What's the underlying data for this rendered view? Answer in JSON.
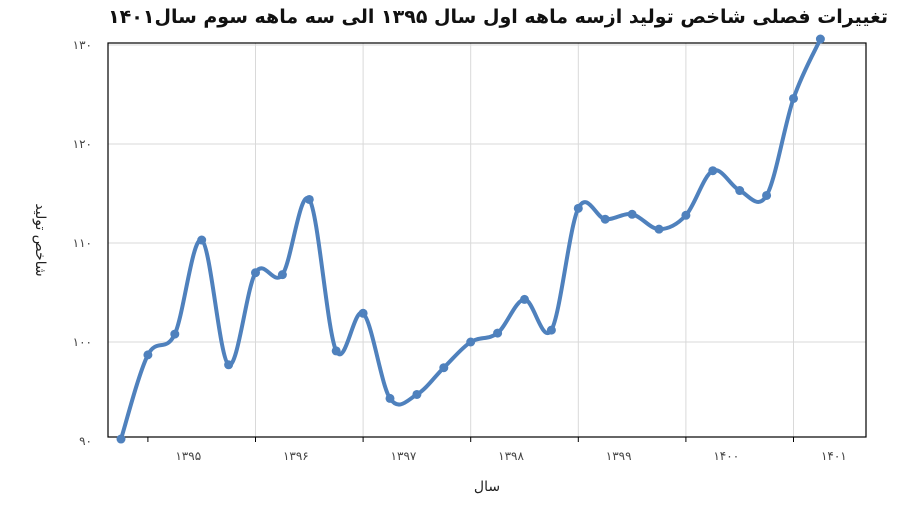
{
  "chart_data": {
    "type": "line",
    "title": "تغییرات فصلی شاخص تولید ازسه ماهه اول سال ۱۳۹۵ الی سه ماهه سوم سال۱۴۰۱",
    "xlabel": "سال",
    "ylabel": "شاخص تولید",
    "ylim": [
      90,
      130
    ],
    "yticks": [
      {
        "value": 90,
        "label": "۹۰"
      },
      {
        "value": 100,
        "label": "۱۰۰"
      },
      {
        "value": 110,
        "label": "۱۱۰"
      },
      {
        "value": 120,
        "label": "۱۲۰"
      },
      {
        "value": 130,
        "label": "۱۳۰"
      }
    ],
    "xticks": [
      {
        "label": "۱۳۹۵",
        "position": 2.5
      },
      {
        "label": "۱۳۹۶",
        "position": 6.5
      },
      {
        "label": "۱۳۹۷",
        "position": 10.5
      },
      {
        "label": "۱۳۹۸",
        "position": 14.5
      },
      {
        "label": "۱۳۹۹",
        "position": 18.5
      },
      {
        "label": "۱۴۰۰",
        "position": 22.5
      },
      {
        "label": "۱۴۰۱",
        "position": 26.5
      }
    ],
    "grid": true,
    "legend": "none",
    "line_color": "#4f81bd",
    "series": [
      {
        "values": [
          90.2,
          98.7,
          100.8,
          110.3,
          97.7,
          107.0,
          106.8,
          114.4,
          99.1,
          102.9,
          94.3,
          94.7,
          97.4,
          100.0,
          100.9,
          104.3,
          101.2,
          113.5,
          112.4,
          112.9,
          111.4,
          112.8,
          117.3,
          115.3,
          114.8,
          124.6,
          130.6
        ]
      }
    ]
  }
}
